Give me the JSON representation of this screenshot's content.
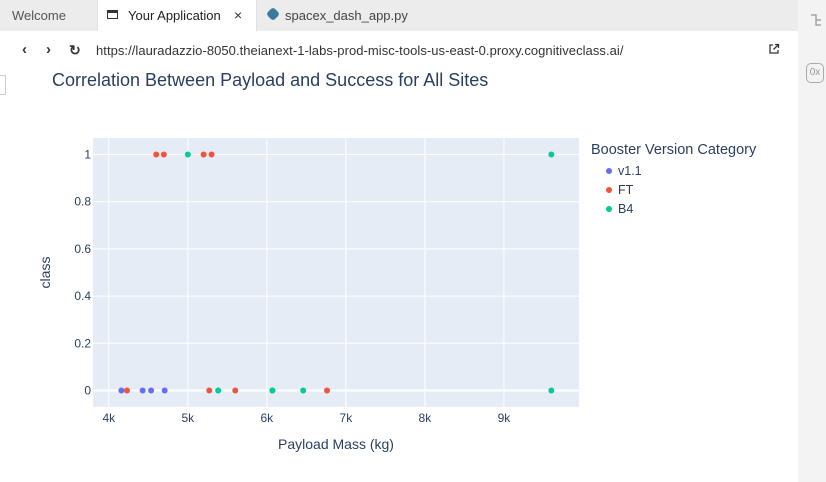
{
  "tabs": {
    "welcome": "Welcome",
    "app": "Your Application",
    "app_close": "×",
    "py": "spacex_dash_app.py"
  },
  "address": {
    "back": "‹",
    "forward": "›",
    "reload": "↻",
    "url": "https://lauradazzio-8050.theianext-1-labs-prod-misc-tools-us-east-0.proxy.cognitiveclass.ai/"
  },
  "rail": {
    "icon2": "0x"
  },
  "colors": {
    "v1.1": "#636efa",
    "FT": "#ef553b",
    "B4": "#00cc96",
    "plot_bg": "#e5ecf6",
    "text": "#2a3f5f"
  },
  "chart_data": {
    "type": "scatter",
    "title": "Correlation Between Payload and Success for All Sites",
    "xlabel": "Payload Mass (kg)",
    "ylabel": "class",
    "xlim": [
      3800,
      9950
    ],
    "ylim": [
      -0.07,
      1.07
    ],
    "xticks": [
      4000,
      5000,
      6000,
      7000,
      8000,
      9000
    ],
    "xtick_labels": [
      "4k",
      "5k",
      "6k",
      "7k",
      "8k",
      "9k"
    ],
    "yticks": [
      0,
      0.2,
      0.4,
      0.6,
      0.8,
      1
    ],
    "ytick_labels": [
      "0",
      "0.2",
      "0.4",
      "0.6",
      "0.8",
      "1"
    ],
    "legend_title": "Booster Version Category",
    "series": [
      {
        "name": "v1.1",
        "color": "#636efa",
        "points": [
          [
            4159,
            0
          ],
          [
            4428,
            0
          ],
          [
            4535,
            0
          ],
          [
            4707,
            0
          ]
        ]
      },
      {
        "name": "FT",
        "color": "#ef553b",
        "points": [
          [
            4230,
            0
          ],
          [
            4600,
            1
          ],
          [
            4696,
            1
          ],
          [
            5200,
            1
          ],
          [
            5300,
            1
          ],
          [
            5271,
            0
          ],
          [
            5600,
            0
          ],
          [
            6070,
            0
          ],
          [
            6761,
            0
          ]
        ]
      },
      {
        "name": "B4",
        "color": "#00cc96",
        "points": [
          [
            5000,
            1
          ],
          [
            5384,
            0
          ],
          [
            6070,
            0
          ],
          [
            6460,
            0
          ],
          [
            9600,
            1
          ],
          [
            9600,
            0
          ]
        ]
      }
    ]
  }
}
